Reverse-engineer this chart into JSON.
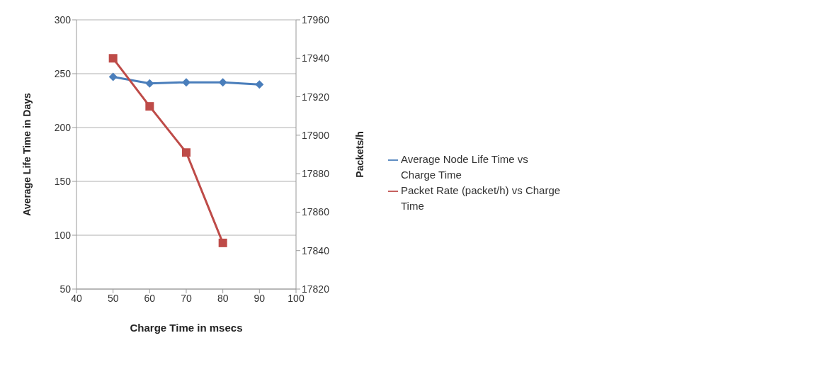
{
  "chart_data": {
    "type": "line",
    "xlabel": "Charge Time in msecs",
    "ylabel": "Average Life Time in Days",
    "y2label": "Packets/h",
    "x": [
      50,
      60,
      70,
      80,
      90
    ],
    "xlim": [
      40,
      100
    ],
    "xticks": [
      40,
      50,
      60,
      70,
      80,
      90,
      100
    ],
    "ylim": [
      50,
      300
    ],
    "yticks": [
      50,
      100,
      150,
      200,
      250,
      300
    ],
    "y2lim": [
      17820,
      17960
    ],
    "y2ticks": [
      17820,
      17840,
      17860,
      17880,
      17900,
      17920,
      17940,
      17960
    ],
    "grid": "y",
    "legend": "right",
    "series": [
      {
        "name": "Average Node Life Time vs Charge Time",
        "color": "#4a7ebb",
        "marker": "diamond",
        "values": [
          247,
          241,
          242,
          242,
          240
        ]
      },
      {
        "name": "Packet Rate (packet/h) vs Charge Time",
        "color": "#be4b48",
        "marker": "square",
        "axis": "y2",
        "x": [
          50,
          60,
          70,
          80
        ],
        "values": [
          17940,
          17915,
          17891,
          17844
        ]
      }
    ]
  }
}
